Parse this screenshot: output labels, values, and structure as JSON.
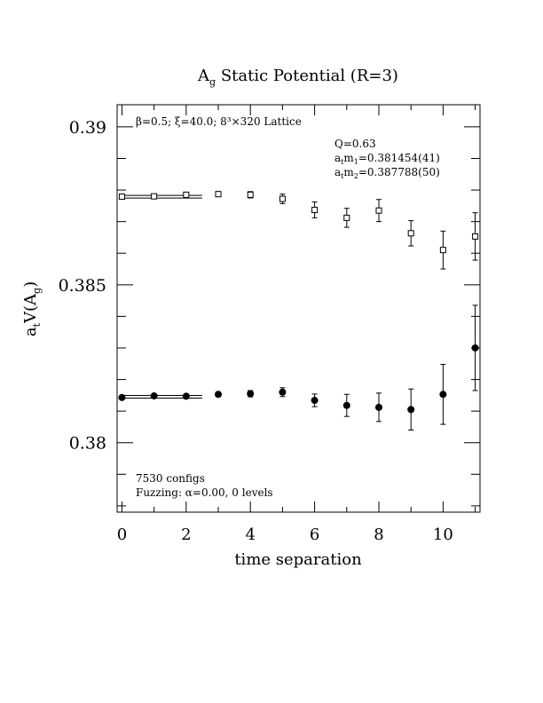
{
  "chart_data": {
    "type": "scatter",
    "title": {
      "main": "A",
      "sub": "g",
      "rest": " Static Potential (R=3)"
    },
    "xlabel": "time separation",
    "ylabel": {
      "a": "a",
      "t": "t",
      "v": "V(A",
      "g": "g",
      "close": ")"
    },
    "xlim": [
      -0.15,
      11.15
    ],
    "ylim": [
      0.3778,
      0.3907
    ],
    "x_ticks": [
      "0",
      "2",
      "4",
      "6",
      "8",
      "10"
    ],
    "y_ticks": [
      "0.38",
      "0.385",
      "0.39"
    ],
    "annotations": {
      "lattice": "β=0.5; ξ=40.0; 8³×320 Lattice",
      "q": "Q=0.63",
      "m1": {
        "a": "a",
        "t": "t",
        "m": "m",
        "n": "1",
        "value": "=0.381454(41)"
      },
      "m2": {
        "a": "a",
        "t": "t",
        "m": "m",
        "n": "2",
        "value": "=0.387788(50)"
      },
      "configs": "7530 configs",
      "fuzzing": "Fuzzing: α=0.00, 0 levels"
    },
    "series": [
      {
        "marker": "open-square",
        "x": [
          0,
          1,
          2,
          3,
          4,
          5,
          6,
          7,
          8,
          9,
          10,
          11
        ],
        "y": [
          0.38779,
          0.3878,
          0.38785,
          0.38787,
          0.38785,
          0.38772,
          0.38737,
          0.38712,
          0.38735,
          0.38663,
          0.3861,
          0.38653
        ],
        "err": [
          4e-05,
          5e-05,
          6e-05,
          8e-05,
          0.0001,
          0.00015,
          0.00025,
          0.0003,
          0.00035,
          0.0004,
          0.0006,
          0.00075
        ],
        "fit": {
          "value": 0.387788,
          "x_range": [
            0,
            2.5
          ]
        }
      },
      {
        "marker": "filled-circle",
        "x": [
          0,
          1,
          2,
          3,
          4,
          5,
          6,
          7,
          8,
          9,
          10,
          11
        ],
        "y": [
          0.38143,
          0.38148,
          0.38147,
          0.38153,
          0.38155,
          0.3816,
          0.38134,
          0.38118,
          0.38112,
          0.38105,
          0.38153,
          0.383
        ],
        "err": [
          4e-05,
          5e-05,
          6e-05,
          7e-05,
          0.0001,
          0.00014,
          0.0002,
          0.00035,
          0.00045,
          0.00065,
          0.00095,
          0.00135
        ],
        "fit": {
          "value": 0.381454,
          "x_range": [
            0,
            2.5
          ]
        }
      }
    ]
  }
}
